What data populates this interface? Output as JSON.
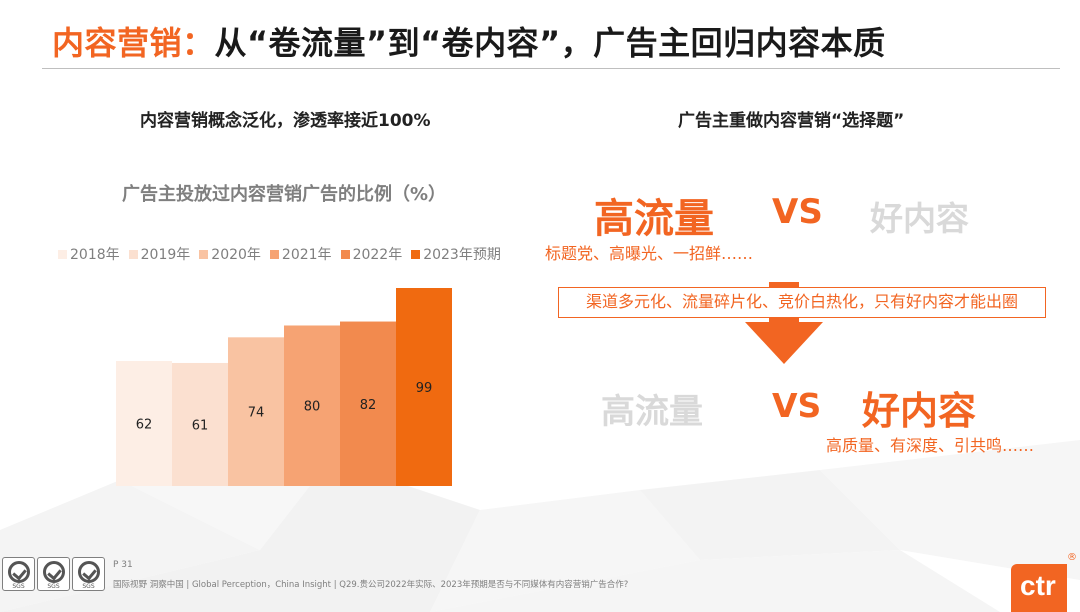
{
  "title": {
    "accent": "内容营销：",
    "rest": "从“卷流量”到“卷内容”，广告主回归内容本质"
  },
  "left": {
    "subtitle": "内容营销概念泛化，渗透率接近100%"
  },
  "right": {
    "subtitle": "广告主重做内容营销“选择题”",
    "row1": {
      "left_word": "高流量",
      "vs": "VS",
      "right_word": "好内容",
      "caption": "标题党、高曝光、一招鲜……"
    },
    "channel_text": "渠道多元化、流量碎片化、竞价白热化，只有好内容才能出圈",
    "row2": {
      "left_word": "高流量",
      "vs": "VS",
      "right_word": "好内容",
      "caption": "高质量、有深度、引共鸣……"
    }
  },
  "footer": {
    "page": "P 31",
    "source": "国际视野  洞察中国 | Global Perception，China Insight  |  Q29.贵公司2022年实际、2023年预期是否与不同媒体有内容营销广告合作?",
    "sgs_labels": [
      "SGS",
      "SGS",
      "SGS"
    ],
    "logo_text": "ctr",
    "logo_mark": "®"
  },
  "colors": {
    "accent": "#f26522",
    "muted": "#d9d9d9",
    "bar_colors": [
      "#fdeee5",
      "#fbe0d0",
      "#f9c3a2",
      "#f6a373",
      "#f28a4e",
      "#f06a10"
    ]
  },
  "chart_data": {
    "type": "bar",
    "title": "广告主投放过内容营销广告的比例（%）",
    "categories": [
      "2018年",
      "2019年",
      "2020年",
      "2021年",
      "2022年",
      "2023年预期"
    ],
    "values": [
      62,
      61,
      74,
      80,
      82,
      99
    ],
    "ylim": [
      0,
      100
    ],
    "xlabel": "",
    "ylabel": "",
    "legend": "top",
    "grid": false
  }
}
